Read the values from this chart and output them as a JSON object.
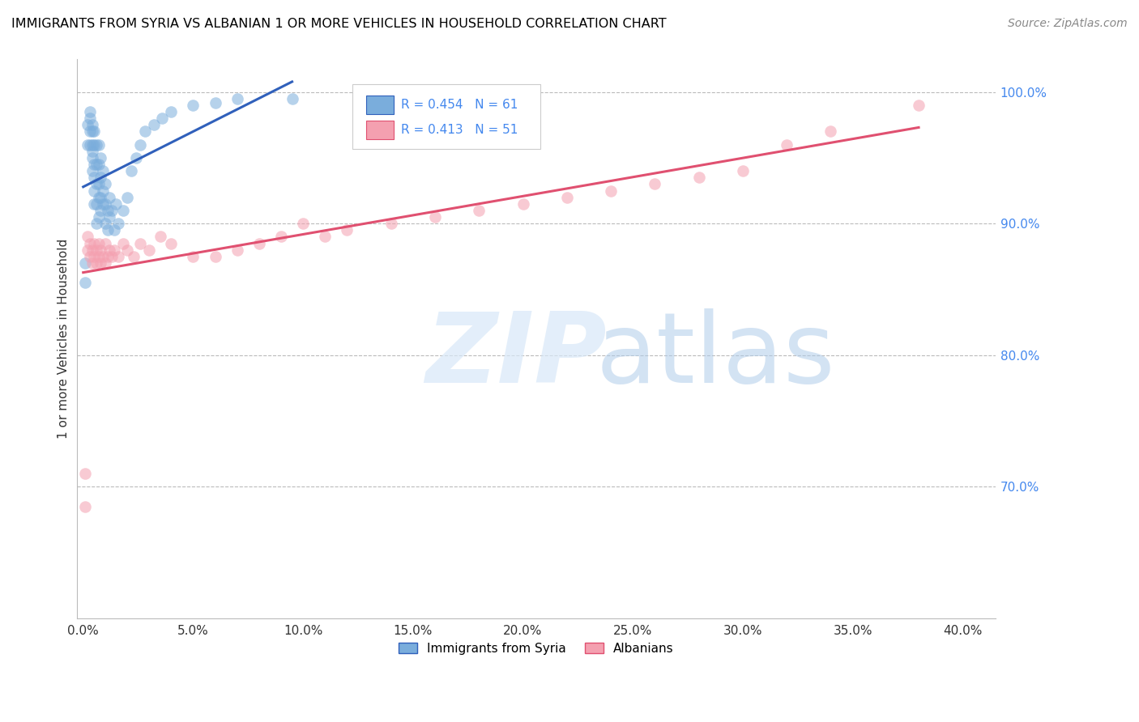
{
  "title": "IMMIGRANTS FROM SYRIA VS ALBANIAN 1 OR MORE VEHICLES IN HOUSEHOLD CORRELATION CHART",
  "source": "Source: ZipAtlas.com",
  "ylabel": "1 or more Vehicles in Household",
  "R_syria": 0.454,
  "N_syria": 61,
  "R_albanian": 0.413,
  "N_albanian": 51,
  "color_syria": "#7AADDC",
  "color_albanian": "#F4A0B0",
  "color_line_syria": "#3060BB",
  "color_line_albanian": "#E05070",
  "color_right_axis": "#4488EE",
  "legend_syria": "Immigrants from Syria",
  "legend_albanian": "Albanians",
  "syria_x": [
    0.001,
    0.001,
    0.002,
    0.002,
    0.003,
    0.003,
    0.003,
    0.003,
    0.004,
    0.004,
    0.004,
    0.004,
    0.004,
    0.004,
    0.005,
    0.005,
    0.005,
    0.005,
    0.005,
    0.005,
    0.006,
    0.006,
    0.006,
    0.006,
    0.006,
    0.007,
    0.007,
    0.007,
    0.007,
    0.007,
    0.008,
    0.008,
    0.008,
    0.008,
    0.009,
    0.009,
    0.009,
    0.01,
    0.01,
    0.01,
    0.011,
    0.011,
    0.012,
    0.012,
    0.013,
    0.014,
    0.015,
    0.016,
    0.018,
    0.02,
    0.022,
    0.024,
    0.026,
    0.028,
    0.032,
    0.036,
    0.04,
    0.05,
    0.06,
    0.07,
    0.095
  ],
  "syria_y": [
    0.855,
    0.87,
    0.96,
    0.975,
    0.96,
    0.97,
    0.98,
    0.985,
    0.94,
    0.95,
    0.955,
    0.96,
    0.97,
    0.975,
    0.915,
    0.925,
    0.935,
    0.945,
    0.96,
    0.97,
    0.9,
    0.915,
    0.93,
    0.945,
    0.96,
    0.905,
    0.92,
    0.93,
    0.945,
    0.96,
    0.91,
    0.92,
    0.935,
    0.95,
    0.915,
    0.925,
    0.94,
    0.9,
    0.915,
    0.93,
    0.895,
    0.91,
    0.905,
    0.92,
    0.91,
    0.895,
    0.915,
    0.9,
    0.91,
    0.92,
    0.94,
    0.95,
    0.96,
    0.97,
    0.975,
    0.98,
    0.985,
    0.99,
    0.992,
    0.995,
    0.995
  ],
  "albanian_x": [
    0.001,
    0.001,
    0.002,
    0.002,
    0.003,
    0.003,
    0.004,
    0.004,
    0.005,
    0.005,
    0.006,
    0.006,
    0.007,
    0.007,
    0.008,
    0.008,
    0.009,
    0.01,
    0.01,
    0.011,
    0.012,
    0.013,
    0.014,
    0.016,
    0.018,
    0.02,
    0.023,
    0.026,
    0.03,
    0.035,
    0.04,
    0.05,
    0.06,
    0.07,
    0.08,
    0.09,
    0.1,
    0.11,
    0.12,
    0.14,
    0.16,
    0.18,
    0.2,
    0.22,
    0.24,
    0.26,
    0.28,
    0.3,
    0.32,
    0.34,
    0.38
  ],
  "albanian_y": [
    0.685,
    0.71,
    0.88,
    0.89,
    0.875,
    0.885,
    0.87,
    0.88,
    0.875,
    0.885,
    0.87,
    0.88,
    0.875,
    0.885,
    0.87,
    0.88,
    0.875,
    0.87,
    0.885,
    0.875,
    0.88,
    0.875,
    0.88,
    0.875,
    0.885,
    0.88,
    0.875,
    0.885,
    0.88,
    0.89,
    0.885,
    0.875,
    0.875,
    0.88,
    0.885,
    0.89,
    0.9,
    0.89,
    0.895,
    0.9,
    0.905,
    0.91,
    0.915,
    0.92,
    0.925,
    0.93,
    0.935,
    0.94,
    0.96,
    0.97,
    0.99
  ],
  "xticks": [
    0.0,
    0.05,
    0.1,
    0.15,
    0.2,
    0.25,
    0.3,
    0.35,
    0.4
  ],
  "xlim": [
    -0.003,
    0.415
  ],
  "ylim": [
    0.6,
    1.025
  ],
  "yticks_right": [
    1.0,
    0.9,
    0.8,
    0.7
  ],
  "ytick_labels_right": [
    "100.0%",
    "90.0%",
    "80.0%",
    "70.0%"
  ],
  "xtick_labels": [
    "0.0%",
    "5.0%",
    "10.0%",
    "15.0%",
    "20.0%",
    "25.0%",
    "30.0%",
    "35.0%",
    "40.0%"
  ]
}
